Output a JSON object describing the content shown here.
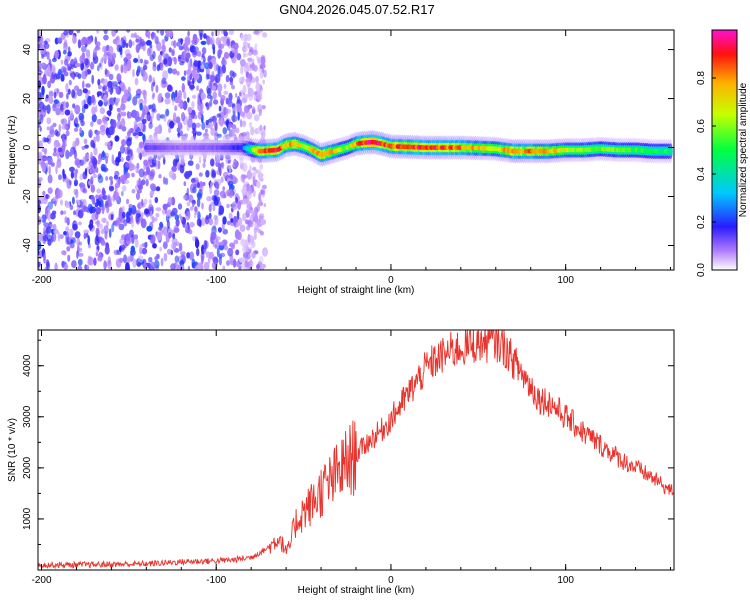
{
  "title": "GN04.2026.045.07.52.R17",
  "colors": {
    "trace": "#e8322b",
    "background": "#ffffff",
    "axis": "#000000"
  },
  "chart_data": [
    {
      "type": "heatmap",
      "xlabel": "Height of straight line (km)",
      "ylabel": "Frequency (Hz)",
      "xlim": [
        -202,
        162
      ],
      "ylim": [
        -50,
        48
      ],
      "xticks": [
        -200,
        -100,
        0,
        100
      ],
      "yticks": [
        -40,
        -20,
        0,
        20,
        40
      ],
      "colorbar": {
        "label": "Normalized spectral amplitude",
        "range": [
          0,
          1
        ],
        "ticks": [
          "0.0",
          "0.2",
          "0.4",
          "0.6",
          "0.8"
        ],
        "ticks_values": [
          0.0,
          0.2,
          0.4,
          0.6,
          0.8
        ],
        "colormap": "rainbow (violet to magenta)"
      },
      "noise_region_x": [
        -202,
        -80
      ],
      "ridge": {
        "x": [
          -140,
          -120,
          -100,
          -85,
          -75,
          -65,
          -60,
          -55,
          -50,
          -45,
          -40,
          -35,
          -30,
          -25,
          -20,
          -15,
          -10,
          -5,
          0,
          20,
          40,
          60,
          70,
          80,
          90,
          100,
          110,
          120,
          130,
          140,
          150,
          160
        ],
        "frequency": [
          0,
          0,
          0,
          0,
          -1.5,
          -1,
          1,
          1.5,
          0.5,
          -1,
          -3,
          -2,
          -1,
          0,
          1.5,
          2,
          2.2,
          1.5,
          0.5,
          0,
          0,
          -0.5,
          -1.5,
          -1.5,
          -1.5,
          -1,
          -1,
          -0.5,
          -1,
          -1,
          -1.5,
          -1.5
        ],
        "amplitude": [
          0.15,
          0.1,
          0.12,
          0.2,
          0.9,
          0.95,
          0.8,
          0.85,
          0.7,
          0.75,
          0.9,
          0.85,
          0.7,
          0.6,
          0.8,
          0.95,
          1.0,
          0.95,
          0.9,
          0.95,
          0.85,
          0.7,
          0.9,
          0.85,
          0.8,
          0.7,
          0.65,
          0.6,
          0.6,
          0.55,
          0.55,
          0.5
        ]
      }
    },
    {
      "type": "line",
      "xlabel": "Height of straight line (km)",
      "ylabel": "SNR (10 * v/v)",
      "xlim": [
        -202,
        162
      ],
      "ylim": [
        0,
        4700
      ],
      "xticks": [
        -200,
        -100,
        0,
        100
      ],
      "yticks": [
        1000,
        2000,
        3000,
        4000
      ],
      "series": [
        {
          "name": "SNR",
          "x": [
            -202,
            -180,
            -160,
            -140,
            -120,
            -100,
            -90,
            -80,
            -72,
            -68,
            -64,
            -62,
            -60,
            -58,
            -55,
            -50,
            -45,
            -40,
            -35,
            -30,
            -25,
            -20,
            -15,
            -10,
            -5,
            0,
            5,
            10,
            15,
            20,
            25,
            30,
            35,
            40,
            45,
            50,
            55,
            60,
            65,
            70,
            75,
            80,
            85,
            90,
            100,
            110,
            120,
            130,
            140,
            150,
            160
          ],
          "y": [
            100,
            100,
            110,
            120,
            160,
            180,
            200,
            250,
            400,
            500,
            650,
            500,
            350,
            450,
            900,
            1150,
            1300,
            1550,
            1700,
            1900,
            2100,
            2250,
            2450,
            2600,
            2750,
            2950,
            3200,
            3450,
            3700,
            3950,
            4100,
            4200,
            4300,
            4350,
            4400,
            4450,
            4450,
            4480,
            4350,
            4100,
            3850,
            3600,
            3350,
            3300,
            3000,
            2700,
            2450,
            2200,
            2000,
            1800,
            1550
          ]
        }
      ]
    }
  ]
}
